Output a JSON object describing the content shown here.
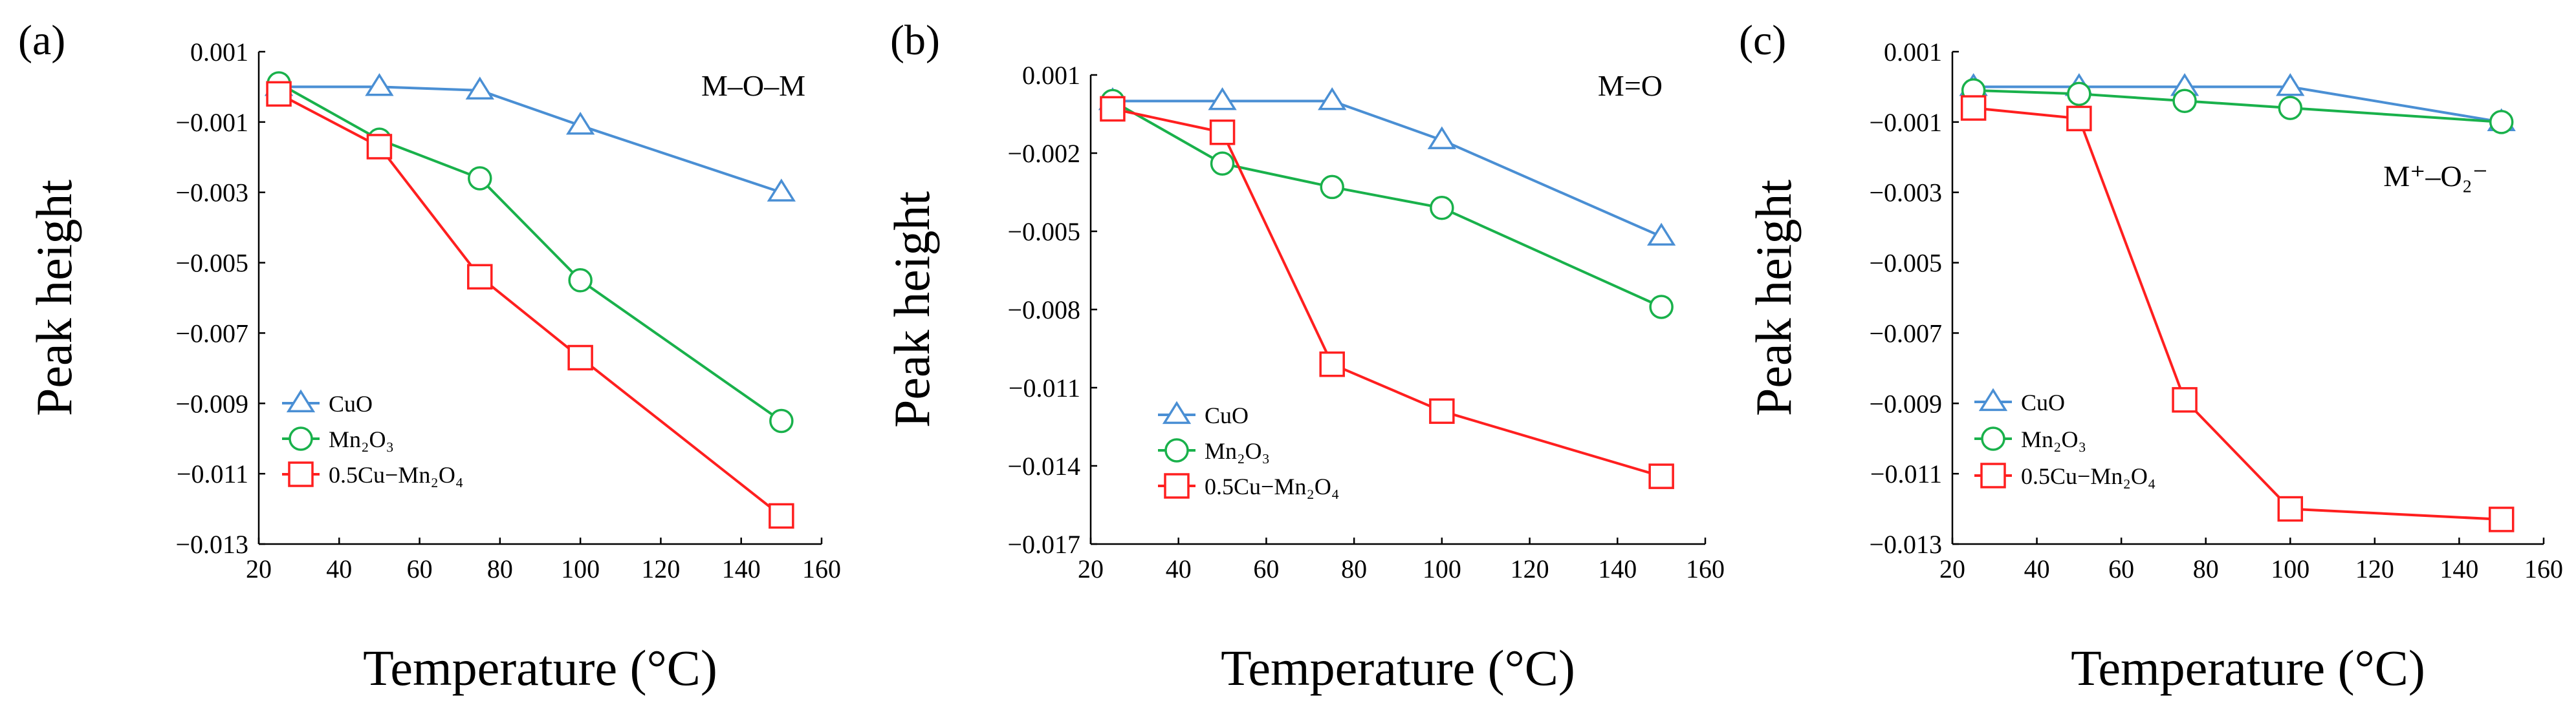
{
  "chart_data": [
    {
      "type": "line",
      "panel_label": "(a)",
      "annotation": "M–O–M",
      "xlabel": "Temperature (°C)",
      "ylabel": "Peak height",
      "xlim": [
        20,
        160
      ],
      "ylim": [
        -0.013,
        0.001
      ],
      "x_ticks": [
        20,
        40,
        60,
        80,
        100,
        120,
        140,
        160
      ],
      "y_ticks": [
        0.001,
        -0.001,
        -0.003,
        -0.005,
        -0.007,
        -0.009,
        -0.011,
        -0.013
      ],
      "x_tick_labels": [
        "20",
        "40",
        "60",
        "80",
        "100",
        "120",
        "140",
        "160"
      ],
      "y_tick_labels": [
        "0.001",
        "−0.001",
        "−0.003",
        "−0.005",
        "−0.007",
        "−0.009",
        "−0.011",
        "−0.013"
      ],
      "legend_position": "bottom-left",
      "series": [
        {
          "name": "CuO",
          "color": "#4a8fd4",
          "marker": "triangle",
          "x": [
            25,
            50,
            75,
            100,
            150
          ],
          "y": [
            0.0,
            0.0,
            -0.0001,
            -0.0011,
            -0.003
          ]
        },
        {
          "name": "Mn₂O₃",
          "color": "#19b14b",
          "marker": "circle",
          "x": [
            25,
            50,
            75,
            100,
            150
          ],
          "y": [
            0.0001,
            -0.0015,
            -0.0026,
            -0.0055,
            -0.0095
          ]
        },
        {
          "name": "0.5Cu−Mn₂O₄",
          "color": "#ff1f1f",
          "marker": "square",
          "x": [
            25,
            50,
            75,
            100,
            150
          ],
          "y": [
            -0.0002,
            -0.0017,
            -0.0054,
            -0.0077,
            -0.0122
          ]
        }
      ]
    },
    {
      "type": "line",
      "panel_label": "(b)",
      "annotation": "M=O",
      "xlabel": "Temperature (°C)",
      "ylabel": "Peak height",
      "xlim": [
        20,
        160
      ],
      "ylim": [
        -0.017,
        0.001
      ],
      "x_ticks": [
        20,
        40,
        60,
        80,
        100,
        120,
        140,
        160
      ],
      "y_ticks": [
        0.001,
        -0.002,
        -0.005,
        -0.008,
        -0.011,
        -0.014,
        -0.017
      ],
      "x_tick_labels": [
        "20",
        "40",
        "60",
        "80",
        "100",
        "120",
        "140",
        "160"
      ],
      "y_tick_labels": [
        "0.001",
        "−0.002",
        "−0.005",
        "−0.008",
        "−0.011",
        "−0.014",
        "−0.017"
      ],
      "legend_position": "bottom-left",
      "series": [
        {
          "name": "CuO",
          "color": "#4a8fd4",
          "marker": "triangle",
          "x": [
            25,
            50,
            75,
            100,
            150
          ],
          "y": [
            0.0,
            0.0,
            0.0,
            -0.0015,
            -0.0052
          ]
        },
        {
          "name": "Mn₂O₃",
          "color": "#19b14b",
          "marker": "circle",
          "x": [
            25,
            50,
            75,
            100,
            150
          ],
          "y": [
            0.0,
            -0.0024,
            -0.0033,
            -0.0041,
            -0.0079
          ]
        },
        {
          "name": "0.5Cu−Mn₂O₄",
          "color": "#ff1f1f",
          "marker": "square",
          "x": [
            25,
            50,
            75,
            100,
            150
          ],
          "y": [
            -0.0003,
            -0.0012,
            -0.0101,
            -0.0119,
            -0.0144
          ]
        }
      ]
    },
    {
      "type": "line",
      "panel_label": "(c)",
      "annotation": "M⁺–O₂⁻",
      "xlabel": "Temperature (°C)",
      "ylabel": "Peak height",
      "xlim": [
        20,
        160
      ],
      "ylim": [
        -0.013,
        0.001
      ],
      "x_ticks": [
        20,
        40,
        60,
        80,
        100,
        120,
        140,
        160
      ],
      "y_ticks": [
        0.001,
        -0.001,
        -0.003,
        -0.005,
        -0.007,
        -0.009,
        -0.011,
        -0.013
      ],
      "x_tick_labels": [
        "20",
        "40",
        "60",
        "80",
        "100",
        "120",
        "140",
        "160"
      ],
      "y_tick_labels": [
        "0.001",
        "−0.001",
        "−0.003",
        "−0.005",
        "−0.007",
        "−0.009",
        "−0.011",
        "−0.013"
      ],
      "legend_position": "bottom-left",
      "series": [
        {
          "name": "CuO",
          "color": "#4a8fd4",
          "marker": "triangle",
          "x": [
            25,
            50,
            75,
            100,
            150
          ],
          "y": [
            0.0,
            0.0,
            0.0,
            0.0,
            -0.001
          ]
        },
        {
          "name": "Mn₂O₃",
          "color": "#19b14b",
          "marker": "circle",
          "x": [
            25,
            50,
            75,
            100,
            150
          ],
          "y": [
            -0.0001,
            -0.0002,
            -0.0004,
            -0.0006,
            -0.001
          ]
        },
        {
          "name": "0.5Cu−Mn₂O₄",
          "color": "#ff1f1f",
          "marker": "square",
          "x": [
            25,
            50,
            75,
            100,
            150
          ],
          "y": [
            -0.0006,
            -0.0009,
            -0.0089,
            -0.012,
            -0.0123
          ]
        }
      ]
    }
  ]
}
